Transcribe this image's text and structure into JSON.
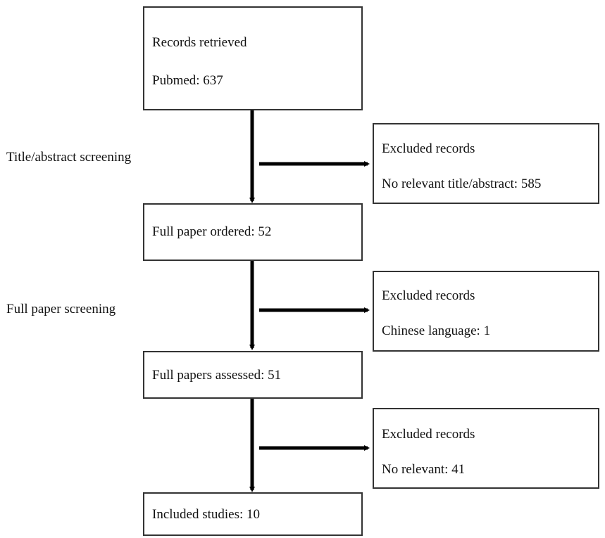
{
  "diagram": {
    "type": "flowchart",
    "steps": [
      {
        "id": "records-retrieved",
        "lines": [
          "Records retrieved",
          "Pubmed: 637"
        ]
      },
      {
        "id": "full-paper-ordered",
        "lines": [
          "Full paper ordered: 52"
        ]
      },
      {
        "id": "full-papers-assessed",
        "lines": [
          "Full papers assessed: 51"
        ]
      },
      {
        "id": "included-studies",
        "lines": [
          "Included studies: 10"
        ]
      }
    ],
    "stages": [
      {
        "label": "Title/abstract screening"
      },
      {
        "label": "Full paper screening"
      }
    ],
    "exclusions": [
      {
        "title": "Excluded records",
        "detail": "No relevant title/abstract: 585"
      },
      {
        "title": "Excluded records",
        "detail": "Chinese language: 1"
      },
      {
        "title": "Excluded records",
        "detail": "No relevant: 41"
      }
    ],
    "colors": {
      "box_border": "#333333",
      "arrow": "#000000",
      "text": "#111111",
      "background": "#ffffff"
    }
  }
}
